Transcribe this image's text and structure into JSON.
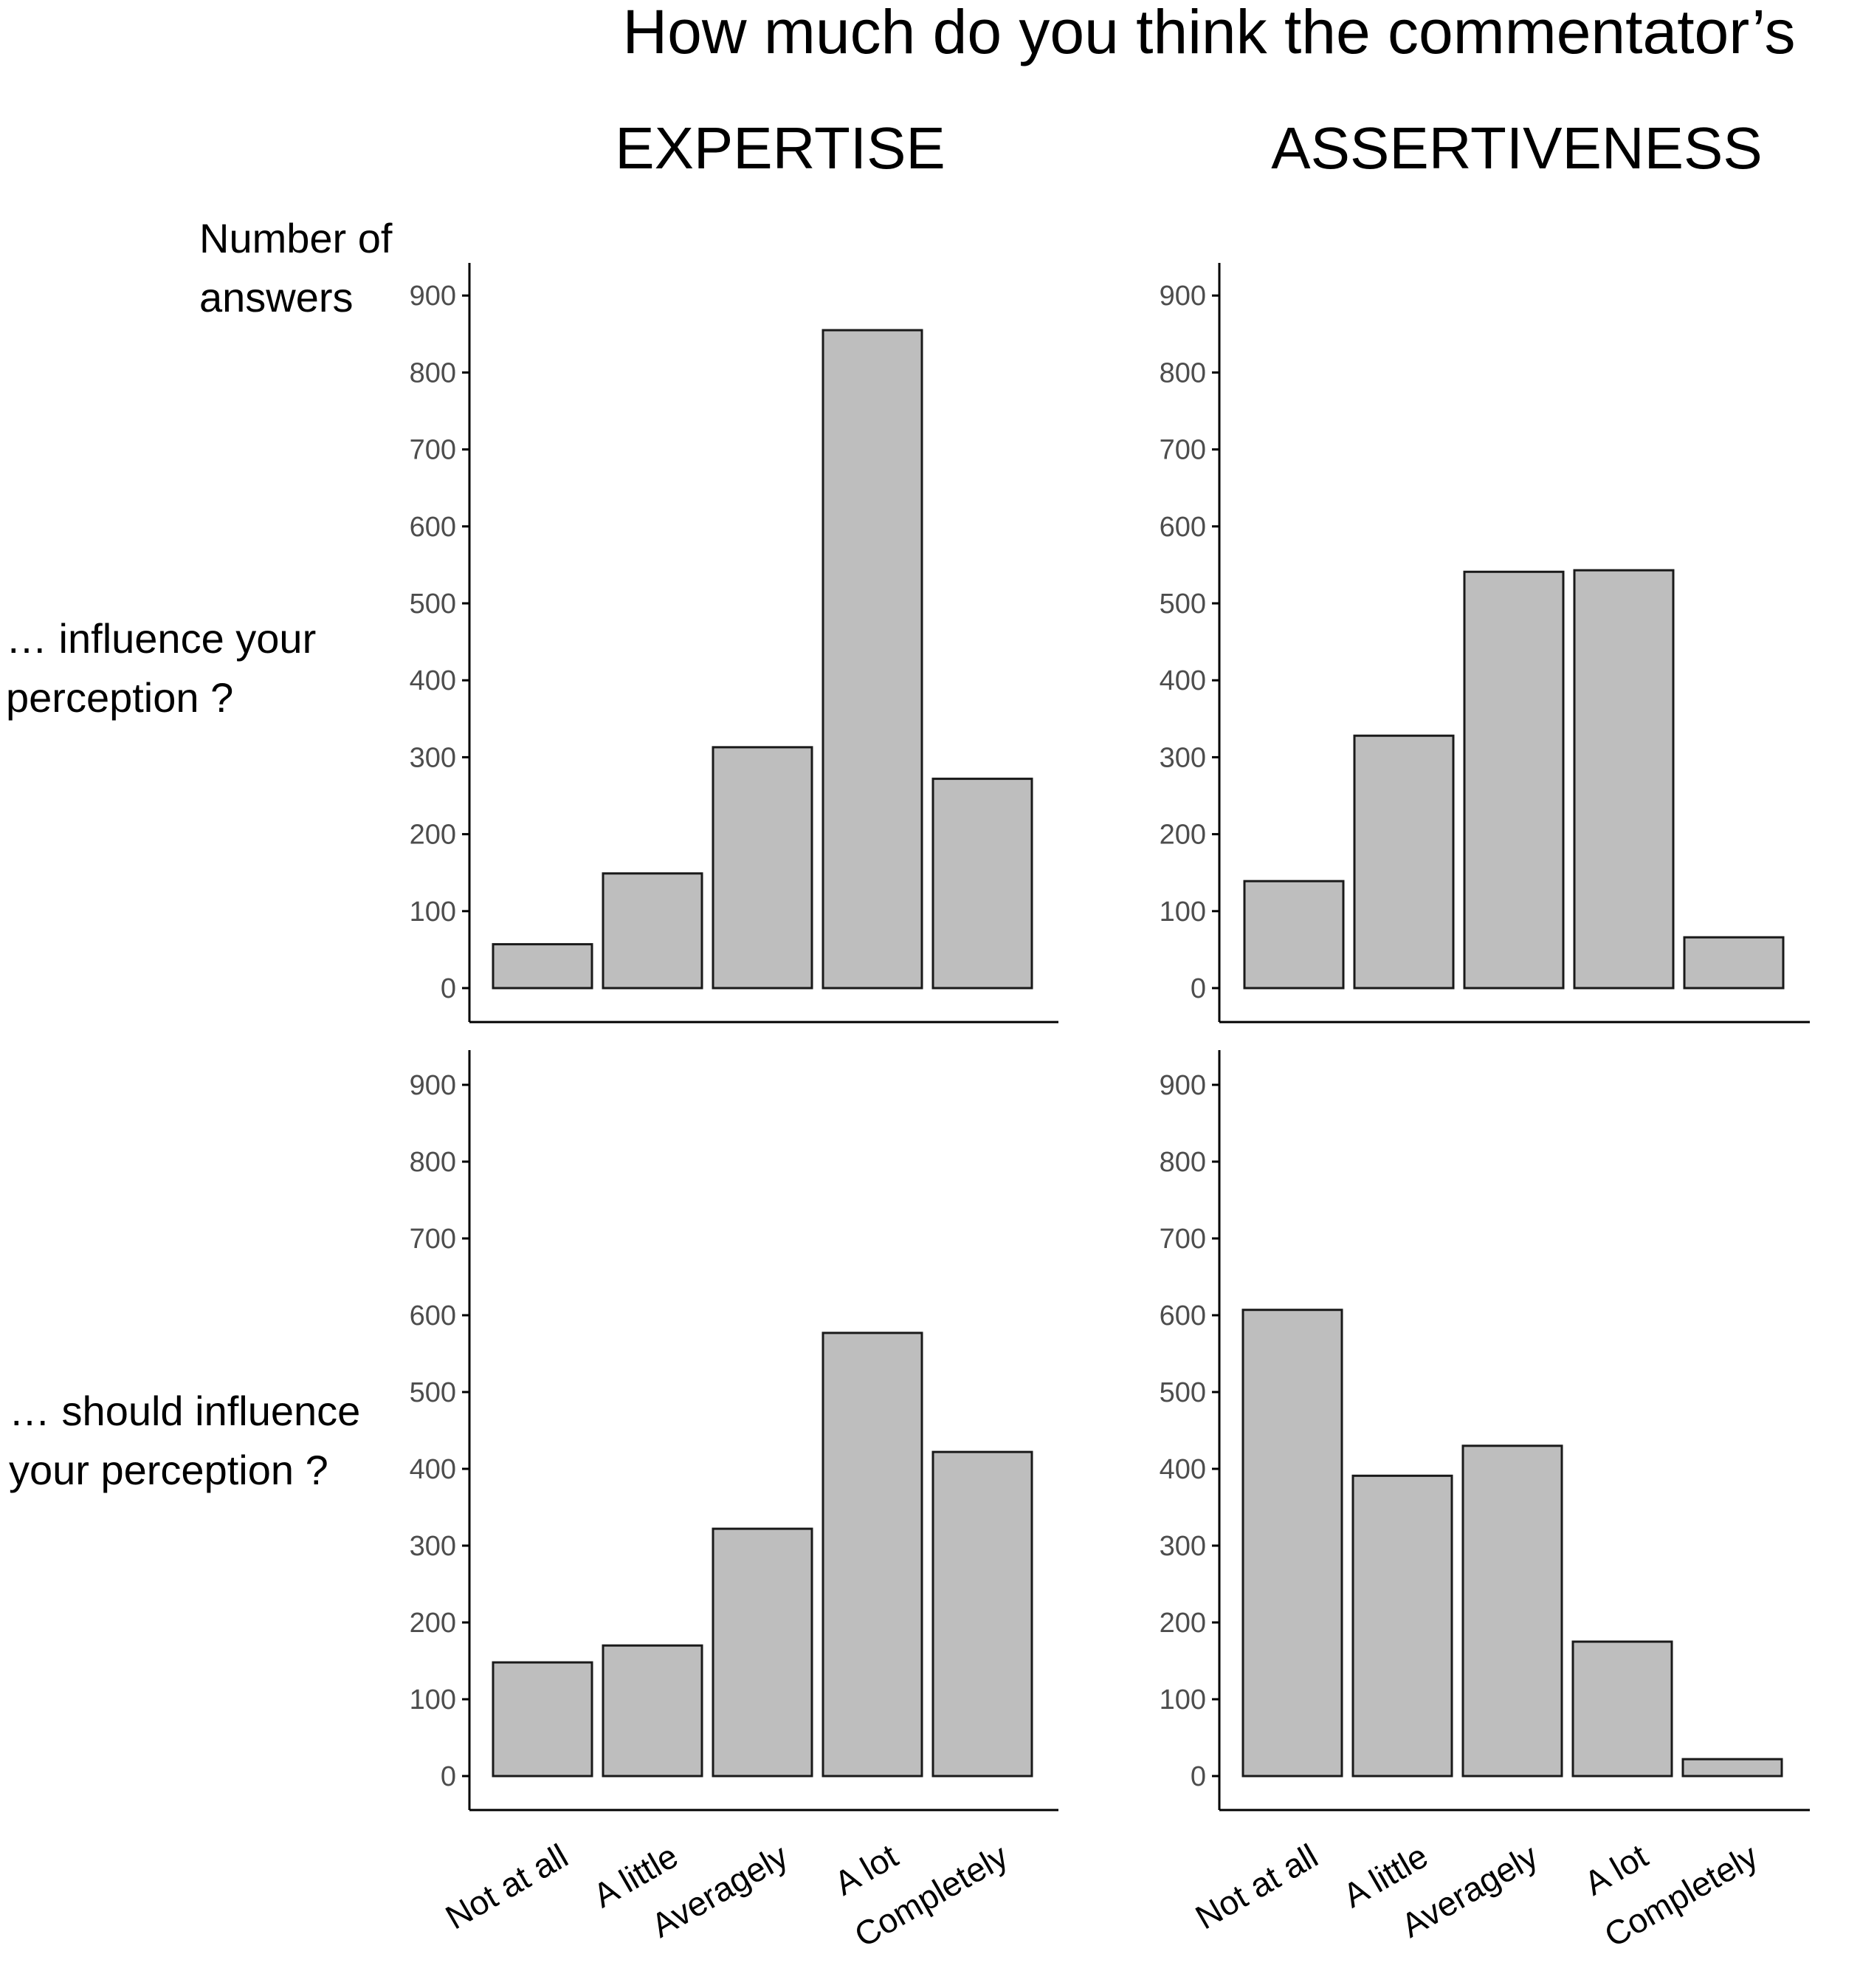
{
  "figure": {
    "title": "How much do you think the commentator’s",
    "column_titles": [
      "EXPERTISE",
      "ASSERTIVENESS"
    ],
    "y_axis_label": [
      "Number of",
      "answers"
    ],
    "row_labels": [
      [
        "… influence your",
        "perception ?"
      ],
      [
        "… should influence",
        "your perception ?"
      ]
    ],
    "bar_fill": "#bebebe",
    "bar_stroke": "#1a1a1a"
  },
  "chart_data": [
    {
      "type": "bar",
      "panel": "top-left",
      "categories": [
        "Not at all",
        "A little",
        "Averagely",
        "A lot",
        "Completely"
      ],
      "values": [
        57,
        149,
        313,
        855,
        272
      ],
      "ylim": [
        0,
        900
      ],
      "yticks": [
        0,
        100,
        200,
        300,
        400,
        500,
        600,
        700,
        800,
        900
      ],
      "grid": false
    },
    {
      "type": "bar",
      "panel": "top-right",
      "categories": [
        "Not at all",
        "A little",
        "Averagely",
        "A lot",
        "Completely"
      ],
      "values": [
        139,
        328,
        541,
        543,
        66
      ],
      "ylim": [
        0,
        900
      ],
      "yticks": [
        0,
        100,
        200,
        300,
        400,
        500,
        600,
        700,
        800,
        900
      ],
      "grid": false
    },
    {
      "type": "bar",
      "panel": "bottom-left",
      "categories": [
        "Not at all",
        "A little",
        "Averagely",
        "A lot",
        "Completely"
      ],
      "values": [
        148,
        170,
        322,
        577,
        422
      ],
      "ylim": [
        0,
        900
      ],
      "yticks": [
        0,
        100,
        200,
        300,
        400,
        500,
        600,
        700,
        800,
        900
      ],
      "grid": false
    },
    {
      "type": "bar",
      "panel": "bottom-right",
      "categories": [
        "Not at all",
        "A little",
        "Averagely",
        "A lot",
        "Completely"
      ],
      "values": [
        607,
        391,
        430,
        175,
        22
      ],
      "ylim": [
        0,
        900
      ],
      "yticks": [
        0,
        100,
        200,
        300,
        400,
        500,
        600,
        700,
        800,
        900
      ],
      "grid": false
    }
  ]
}
